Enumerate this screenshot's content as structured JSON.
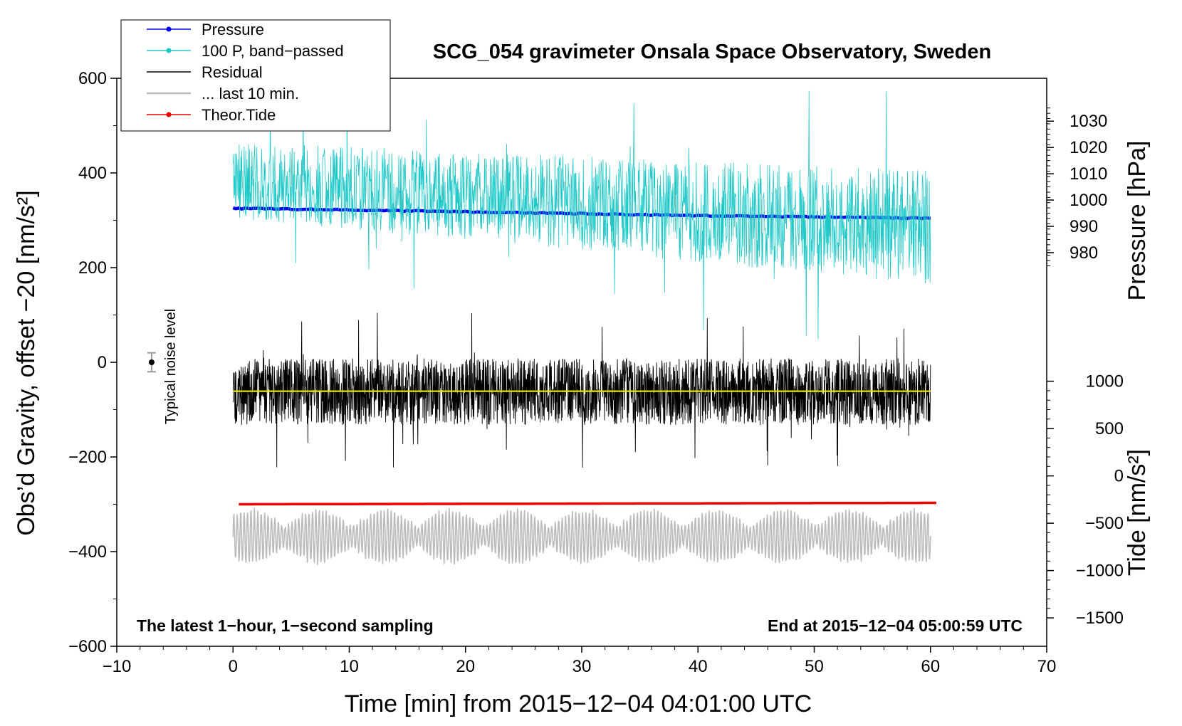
{
  "chart_data": {
    "type": "line",
    "title": "SCG_054 gravimeter Onsala Space Observatory, Sweden",
    "xlabel": "Time [min] from 2015−12−04 04:01:00 UTC",
    "ylabel_left": "Obs’d Gravity, offset −20 [nm/s²]",
    "ylabel_pressure": "Pressure [hPa]",
    "ylabel_tide": "Tide [nm/s²]",
    "xlim": [
      -10,
      70
    ],
    "ylim": [
      -600,
      600
    ],
    "x_ticks": [
      -10,
      0,
      10,
      20,
      30,
      40,
      50,
      60,
      70
    ],
    "x_tick_labels": [
      "−10",
      "0",
      "10",
      "20",
      "30",
      "40",
      "50",
      "60",
      "70"
    ],
    "y_ticks": [
      -600,
      -400,
      -200,
      0,
      200,
      400,
      600
    ],
    "y_tick_labels": [
      "−600",
      "−400",
      "−200",
      "0",
      "200",
      "400",
      "600"
    ],
    "pressure_axis": {
      "ticks": [
        980,
        990,
        1000,
        1010,
        1020,
        1030
      ],
      "tick_labels": [
        "980",
        "990",
        "1000",
        "1010",
        "1020",
        "1030"
      ],
      "map": {
        "value_at_zero": 938.3,
        "units_per_gravity_unit": 0.18
      }
    },
    "tide_axis": {
      "ticks": [
        -1500,
        -1000,
        -500,
        0,
        500,
        1000
      ],
      "tick_labels": [
        "−1500",
        "−1000",
        "−500",
        "0",
        "500",
        "1000"
      ],
      "map": {
        "value_at_zero": 1200,
        "units_per_gravity_unit": 5
      }
    },
    "legend": {
      "position": "top-left",
      "entries": [
        {
          "label": "Pressure",
          "color": "#0000ee",
          "marker": true
        },
        {
          "label": "100 P, band−passed",
          "color": "#20c8c8",
          "marker": true
        },
        {
          "label": "Residual",
          "color": "#000000",
          "marker": false
        },
        {
          "label": "... last 10 min.",
          "color": "#bbbbbb",
          "marker": false
        },
        {
          "label": "Theor.Tide",
          "color": "#ee0000",
          "marker": true
        }
      ]
    },
    "series": [
      {
        "name": "Pressure",
        "color": "#0000ee",
        "x": [
          0,
          10,
          20,
          30,
          40,
          50,
          60
        ],
        "y": [
          325,
          322,
          318,
          314,
          310,
          307,
          304
        ]
      },
      {
        "name": "100 P, band−passed",
        "color": "#20c8c8",
        "x": [
          0,
          60
        ],
        "center": [
          385,
          285
        ],
        "amplitude": [
          80,
          120
        ]
      },
      {
        "name": "Residual",
        "color": "#000000",
        "x": [
          0,
          60
        ],
        "center": -62,
        "amplitude": 70
      },
      {
        "name": "Residual mean",
        "color": "#e6e600",
        "x": [
          0,
          60
        ],
        "y": [
          -61,
          -61
        ]
      },
      {
        "name": "... last 10 min.",
        "color": "#bbbbbb",
        "x": [
          0,
          60
        ],
        "center": -368,
        "amplitude": 55
      },
      {
        "name": "Theor.Tide",
        "color": "#ee0000",
        "x": [
          0.5,
          20,
          40,
          60.5
        ],
        "y": [
          -300,
          -299,
          -298,
          -297
        ]
      }
    ],
    "noise_marker": {
      "label": "Typical noise level",
      "x": -7,
      "y": 0,
      "err": 20
    },
    "annotations": {
      "left": "The latest 1−hour, 1−second sampling",
      "right": "End at 2015−12−04 05:00:59 UTC"
    }
  }
}
